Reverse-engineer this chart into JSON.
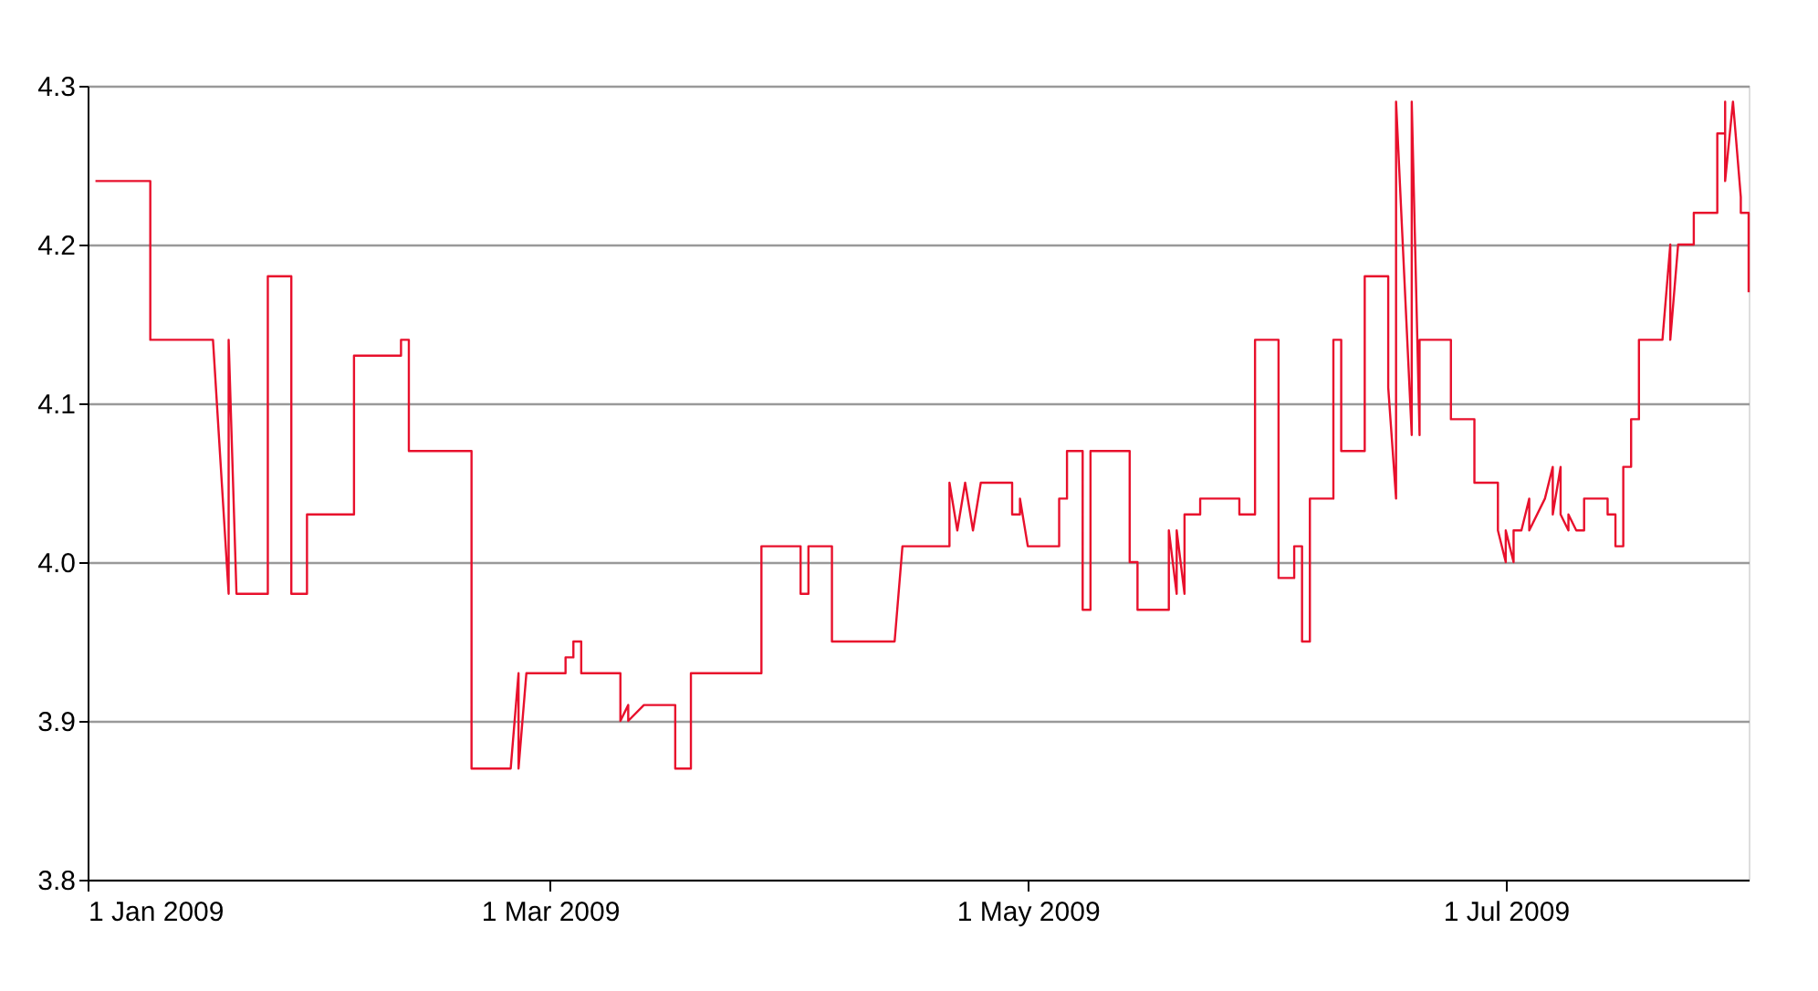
{
  "chart_data": {
    "type": "line",
    "x": [
      "2009-01-02",
      "2009-01-09",
      "2009-01-09",
      "2009-01-17",
      "2009-01-19",
      "2009-01-19",
      "2009-01-20",
      "2009-01-24",
      "2009-01-24",
      "2009-01-27",
      "2009-01-27",
      "2009-01-29",
      "2009-01-29",
      "2009-02-04",
      "2009-02-04",
      "2009-02-10",
      "2009-02-10",
      "2009-02-11",
      "2009-02-11",
      "2009-02-19",
      "2009-02-19",
      "2009-02-24",
      "2009-02-25",
      "2009-02-25",
      "2009-02-26",
      "2009-03-03",
      "2009-03-03",
      "2009-03-04",
      "2009-03-04",
      "2009-03-05",
      "2009-03-05",
      "2009-03-10",
      "2009-03-10",
      "2009-03-11",
      "2009-03-11",
      "2009-03-13",
      "2009-03-17",
      "2009-03-17",
      "2009-03-19",
      "2009-03-19",
      "2009-03-28",
      "2009-03-28",
      "2009-04-02",
      "2009-04-02",
      "2009-04-03",
      "2009-04-03",
      "2009-04-06",
      "2009-04-06",
      "2009-04-14",
      "2009-04-15",
      "2009-04-21",
      "2009-04-21",
      "2009-04-22",
      "2009-04-23",
      "2009-04-24",
      "2009-04-25",
      "2009-04-29",
      "2009-04-29",
      "2009-04-30",
      "2009-04-30",
      "2009-05-01",
      "2009-05-05",
      "2009-05-05",
      "2009-05-06",
      "2009-05-06",
      "2009-05-08",
      "2009-05-08",
      "2009-05-09",
      "2009-05-09",
      "2009-05-14",
      "2009-05-14",
      "2009-05-15",
      "2009-05-15",
      "2009-05-19",
      "2009-05-19",
      "2009-05-20",
      "2009-05-20",
      "2009-05-21",
      "2009-05-21",
      "2009-05-23",
      "2009-05-23",
      "2009-05-28",
      "2009-05-28",
      "2009-05-30",
      "2009-05-30",
      "2009-06-02",
      "2009-06-02",
      "2009-06-04",
      "2009-06-04",
      "2009-06-05",
      "2009-06-05",
      "2009-06-06",
      "2009-06-06",
      "2009-06-09",
      "2009-06-09",
      "2009-06-10",
      "2009-06-10",
      "2009-06-13",
      "2009-06-13",
      "2009-06-16",
      "2009-06-16",
      "2009-06-17",
      "2009-06-17",
      "2009-06-19",
      "2009-06-19",
      "2009-06-20",
      "2009-06-20",
      "2009-06-24",
      "2009-06-24",
      "2009-06-27",
      "2009-06-27",
      "2009-06-30",
      "2009-06-30",
      "2009-07-01",
      "2009-07-01",
      "2009-07-02",
      "2009-07-02",
      "2009-07-03",
      "2009-07-04",
      "2009-07-04",
      "2009-07-06",
      "2009-07-07",
      "2009-07-07",
      "2009-07-08",
      "2009-07-08",
      "2009-07-09",
      "2009-07-09",
      "2009-07-10",
      "2009-07-11",
      "2009-07-11",
      "2009-07-14",
      "2009-07-14",
      "2009-07-15",
      "2009-07-15",
      "2009-07-16",
      "2009-07-16",
      "2009-07-17",
      "2009-07-17",
      "2009-07-18",
      "2009-07-18",
      "2009-07-21",
      "2009-07-22",
      "2009-07-22",
      "2009-07-23",
      "2009-07-25",
      "2009-07-25",
      "2009-07-28",
      "2009-07-28",
      "2009-07-29",
      "2009-07-29",
      "2009-07-29",
      "2009-07-30",
      "2009-07-31",
      "2009-07-31",
      "2009-08-01",
      "2009-08-01"
    ],
    "series": [
      {
        "color": "#e8102c",
        "values": [
          4.24,
          4.24,
          4.14,
          4.14,
          3.98,
          4.14,
          3.98,
          3.98,
          4.18,
          4.18,
          3.98,
          3.98,
          4.03,
          4.03,
          4.13,
          4.13,
          4.14,
          4.14,
          4.07,
          4.07,
          3.87,
          3.87,
          3.93,
          3.87,
          3.93,
          3.93,
          3.94,
          3.94,
          3.95,
          3.95,
          3.93,
          3.93,
          3.9,
          3.91,
          3.9,
          3.91,
          3.91,
          3.87,
          3.87,
          3.93,
          3.93,
          4.01,
          4.01,
          3.98,
          3.98,
          4.01,
          4.01,
          3.95,
          3.95,
          4.01,
          4.01,
          4.05,
          4.02,
          4.05,
          4.02,
          4.05,
          4.05,
          4.03,
          4.03,
          4.04,
          4.01,
          4.01,
          4.04,
          4.04,
          4.07,
          4.07,
          3.97,
          3.97,
          4.07,
          4.07,
          4.0,
          4.0,
          3.97,
          3.97,
          4.02,
          3.98,
          4.02,
          3.98,
          4.03,
          4.03,
          4.04,
          4.04,
          4.03,
          4.03,
          4.14,
          4.14,
          3.99,
          3.99,
          4.01,
          4.01,
          3.95,
          3.95,
          4.04,
          4.04,
          4.14,
          4.14,
          4.07,
          4.07,
          4.18,
          4.18,
          4.11,
          4.04,
          4.29,
          4.08,
          4.29,
          4.08,
          4.14,
          4.14,
          4.09,
          4.09,
          4.05,
          4.05,
          4.02,
          4.0,
          4.02,
          4.0,
          4.02,
          4.02,
          4.04,
          4.02,
          4.04,
          4.06,
          4.03,
          4.06,
          4.03,
          4.02,
          4.03,
          4.02,
          4.02,
          4.04,
          4.04,
          4.03,
          4.03,
          4.01,
          4.01,
          4.06,
          4.06,
          4.09,
          4.09,
          4.14,
          4.14,
          4.2,
          4.14,
          4.2,
          4.2,
          4.22,
          4.22,
          4.27,
          4.27,
          4.29,
          4.24,
          4.29,
          4.23,
          4.22,
          4.22,
          4.17
        ]
      }
    ],
    "xlim": [
      "2009-01-01",
      "2009-08-01"
    ],
    "xticks": [
      {
        "value": "2009-01-01",
        "label": "1 Jan 2009"
      },
      {
        "value": "2009-03-01",
        "label": "1 Mar 2009"
      },
      {
        "value": "2009-05-01",
        "label": "1 May 2009"
      },
      {
        "value": "2009-07-01",
        "label": "1 Jul 2009"
      }
    ],
    "ylim": [
      3.8,
      4.3
    ],
    "yticks": [
      {
        "value": 3.8,
        "label": "3.8"
      },
      {
        "value": 3.9,
        "label": "3.9"
      },
      {
        "value": 4.0,
        "label": "4.0"
      },
      {
        "value": 4.1,
        "label": "4.1"
      },
      {
        "value": 4.2,
        "label": "4.2"
      },
      {
        "value": 4.3,
        "label": "4.3"
      }
    ],
    "grid": "y",
    "legend": false,
    "marker": "none",
    "line_style": "solid"
  }
}
